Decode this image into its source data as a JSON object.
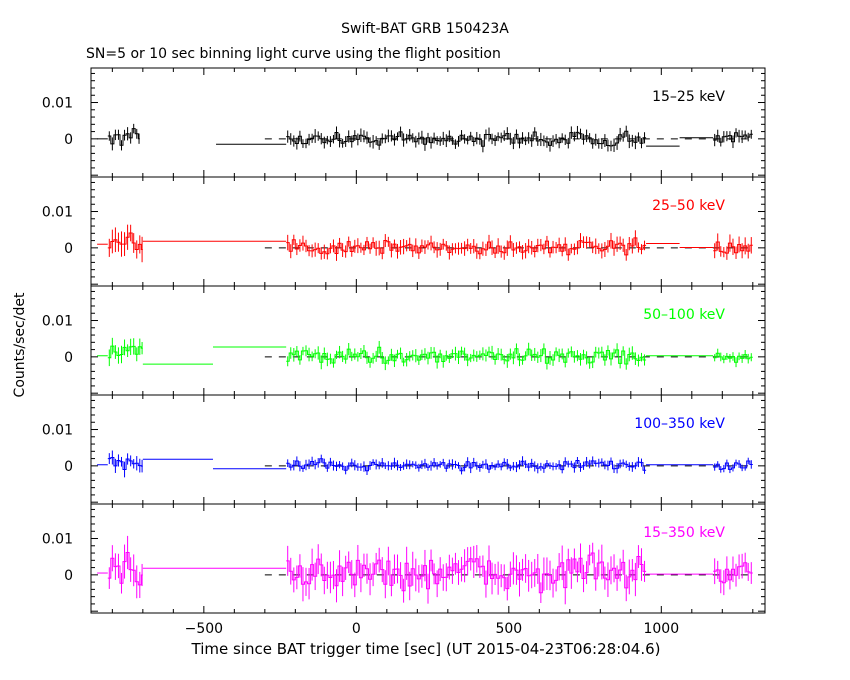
{
  "title": "Swift-BAT GRB 150423A",
  "subtitle": "SN=5 or 10 sec binning light curve using the flight position",
  "chart_data": {
    "type": "line",
    "title": "Swift-BAT GRB 150423A",
    "subtitle": "SN=5 or 10 sec binning light curve using the flight position",
    "xlabel": "Time since BAT trigger time [sec] (UT 2015-04-23T06:28:04.6)",
    "ylabel": "Counts/sec/det",
    "xlim": [
      -870,
      1340
    ],
    "x_ticks": [
      -500,
      0,
      500,
      1000
    ],
    "x_tick_labels": [
      "−500",
      "0",
      "500",
      "1000"
    ],
    "y_ticks": [
      0,
      0.01
    ],
    "y_tick_labels": [
      "0",
      "0.01"
    ],
    "zero_reference": "dashed",
    "panels": [
      {
        "name": "15–25 keV",
        "color": "#000000",
        "ylim": [
          -0.0105,
          0.0195
        ],
        "steps": [
          {
            "x": [
              -850,
              -815
            ],
            "y": 0
          },
          {
            "x": [
              -460,
              -230
            ],
            "y": -0.0015
          },
          {
            "x": [
              950,
              1060
            ],
            "y": -0.002
          },
          {
            "x": [
              1060,
              1170
            ],
            "y": 0.0003
          }
        ],
        "noise": [
          {
            "x": [
              -815,
              -710
            ],
            "amp": 0.0018,
            "offset": 0.0
          },
          {
            "x": [
              -230,
              950
            ],
            "amp": 0.0016,
            "offset": 0.0
          },
          {
            "x": [
              1170,
              1300
            ],
            "amp": 0.0015,
            "offset": 0.0003
          }
        ]
      },
      {
        "name": "25–50 keV",
        "color": "#ff0000",
        "ylim": [
          -0.0105,
          0.0195
        ],
        "steps": [
          {
            "x": [
              -850,
              -815
            ],
            "y": 0.001
          },
          {
            "x": [
              -700,
              -230
            ],
            "y": 0.0018
          },
          {
            "x": [
              950,
              1060
            ],
            "y": 0.0012
          },
          {
            "x": [
              1060,
              1170
            ],
            "y": 0.0001
          }
        ],
        "noise": [
          {
            "x": [
              -815,
              -700
            ],
            "amp": 0.003,
            "offset": 0.0005
          },
          {
            "x": [
              -230,
              950
            ],
            "amp": 0.0018,
            "offset": 0.0002
          },
          {
            "x": [
              1170,
              1300
            ],
            "amp": 0.002,
            "offset": 0.0
          }
        ]
      },
      {
        "name": "50–100 keV",
        "color": "#00ff00",
        "ylim": [
          -0.0105,
          0.0195
        ],
        "steps": [
          {
            "x": [
              -850,
              -815
            ],
            "y": 0.0003
          },
          {
            "x": [
              -700,
              -470
            ],
            "y": -0.002
          },
          {
            "x": [
              -470,
              -230
            ],
            "y": 0.0027
          },
          {
            "x": [
              950,
              1170
            ],
            "y": 0.0003
          }
        ],
        "noise": [
          {
            "x": [
              -815,
              -700
            ],
            "amp": 0.002,
            "offset": 0.0015
          },
          {
            "x": [
              -230,
              950
            ],
            "amp": 0.0016,
            "offset": 0.0003
          },
          {
            "x": [
              1170,
              1300
            ],
            "amp": 0.0012,
            "offset": 0.0
          }
        ]
      },
      {
        "name": "100–350 keV",
        "color": "#0000ff",
        "ylim": [
          -0.0105,
          0.0195
        ],
        "steps": [
          {
            "x": [
              -850,
              -815
            ],
            "y": 0.0003
          },
          {
            "x": [
              -700,
              -470
            ],
            "y": 0.0018
          },
          {
            "x": [
              -470,
              -230
            ],
            "y": -0.0008
          },
          {
            "x": [
              950,
              1170
            ],
            "y": 0.0003
          }
        ],
        "noise": [
          {
            "x": [
              -815,
              -700
            ],
            "amp": 0.0018,
            "offset": 0.0005
          },
          {
            "x": [
              -230,
              950
            ],
            "amp": 0.0012,
            "offset": 0.0002
          },
          {
            "x": [
              1170,
              1300
            ],
            "amp": 0.001,
            "offset": 0.0
          }
        ]
      },
      {
        "name": "15–350 keV",
        "color": "#ff00ff",
        "ylim": [
          -0.0105,
          0.0195
        ],
        "steps": [
          {
            "x": [
              -850,
              -815
            ],
            "y": 0.0005
          },
          {
            "x": [
              -700,
              -470
            ],
            "y": 0.0018
          },
          {
            "x": [
              -470,
              -230
            ],
            "y": 0.0018
          },
          {
            "x": [
              950,
              1170
            ],
            "y": 0.0002
          }
        ],
        "noise": [
          {
            "x": [
              -815,
              -700
            ],
            "amp": 0.004,
            "offset": 0.001
          },
          {
            "x": [
              -230,
              950
            ],
            "amp": 0.004,
            "offset": 0.0005
          },
          {
            "x": [
              1170,
              1300
            ],
            "amp": 0.003,
            "offset": 0.0
          }
        ]
      }
    ]
  }
}
